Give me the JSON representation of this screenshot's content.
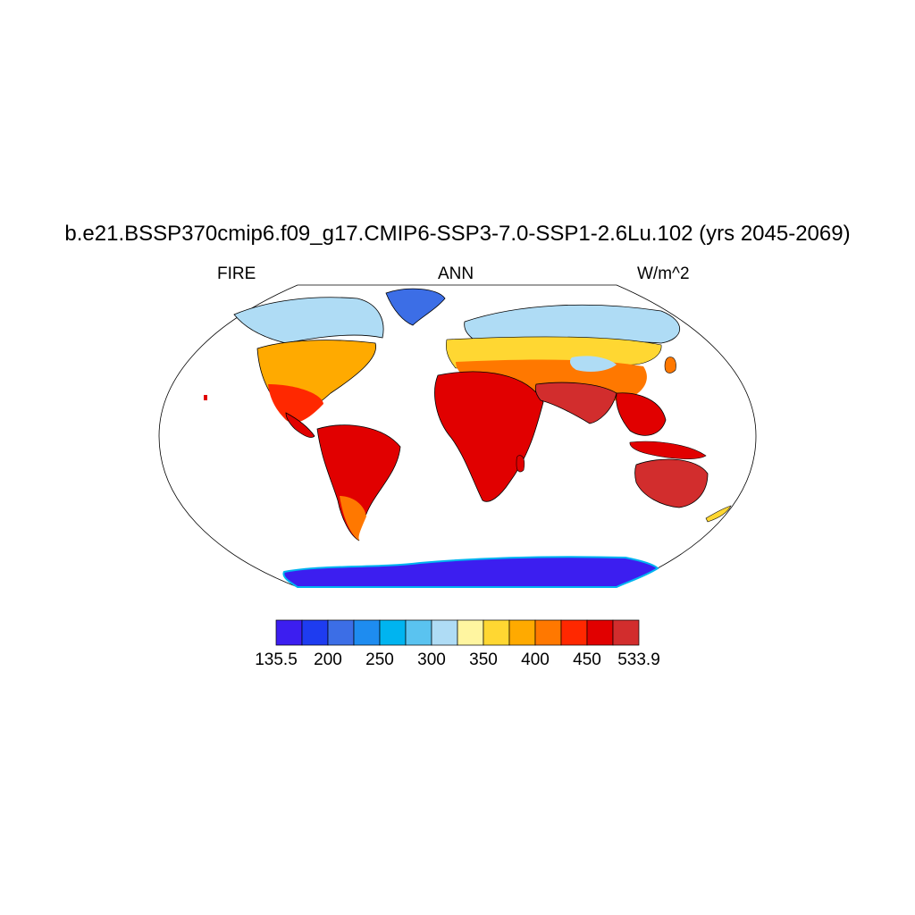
{
  "figure": {
    "title": "b.e21.BSSP370cmip6.f09_g17.CMIP6-SSP3-7.0-SSP1-2.6Lu.102 (yrs 2045-2069)",
    "left_label": "FIRE",
    "center_label": "ANN",
    "right_label": "W/m^2"
  },
  "colorbar": {
    "colors": [
      "#3c1ef0",
      "#1e3cf0",
      "#3c6ee6",
      "#1e8cf0",
      "#00b4f0",
      "#5ac3f0",
      "#afdcf5",
      "#fff5a0",
      "#ffd732",
      "#ffaa00",
      "#ff7800",
      "#ff2800",
      "#e10000",
      "#d22d2d"
    ],
    "labels": [
      "135.5",
      "200",
      "250",
      "300",
      "350",
      "400",
      "450",
      "533.9"
    ]
  },
  "chart_data": {
    "type": "heatmap",
    "title": "b.e21.BSSP370cmip6.f09_g17.CMIP6-SSP3-7.0-SSP1-2.6Lu.102 (yrs 2045-2069)",
    "variable": "FIRE",
    "season": "ANN",
    "units": "W/m^2",
    "projection": "robinson",
    "color_range": [
      135.5,
      533.9
    ],
    "color_levels": [
      135.5,
      200,
      250,
      300,
      350,
      400,
      450,
      533.9
    ],
    "regions": [
      {
        "name": "Antarctica",
        "value": 150
      },
      {
        "name": "Greenland",
        "value": 215
      },
      {
        "name": "Northern Canada / Alaska",
        "value": 300
      },
      {
        "name": "Siberia",
        "value": 320
      },
      {
        "name": "Tibetan Plateau",
        "value": 330
      },
      {
        "name": "Central North America",
        "value": 400
      },
      {
        "name": "Europe",
        "value": 390
      },
      {
        "name": "Africa",
        "value": 470
      },
      {
        "name": "South America",
        "value": 460
      },
      {
        "name": "Australia",
        "value": 465
      },
      {
        "name": "Southeast Asia",
        "value": 470
      },
      {
        "name": "India / Arabia",
        "value": 480
      }
    ]
  }
}
